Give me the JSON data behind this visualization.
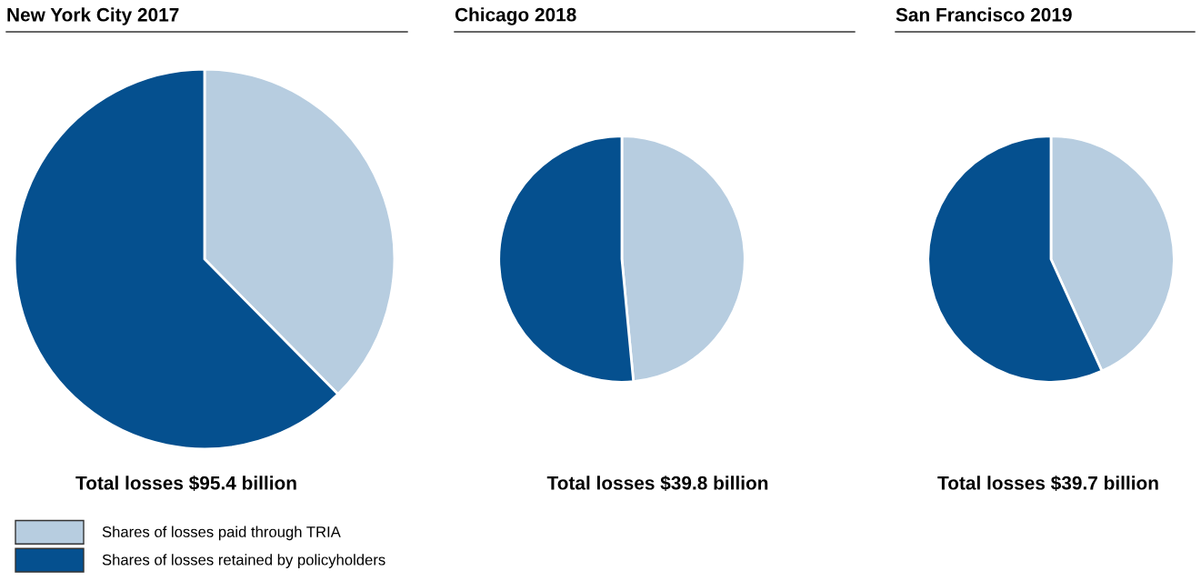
{
  "chart_data": [
    {
      "type": "pie",
      "title": "New York City 2017",
      "categories": [
        "Shares of losses paid through TRIA",
        "Shares of losses retained by policyholders"
      ],
      "values": [
        37.6,
        62.4
      ],
      "colors": [
        "#b7cde0",
        "#05508f"
      ],
      "annotations": [
        "Total losses $95.4 billion"
      ],
      "legend": "bottom left"
    },
    {
      "type": "pie",
      "title": "Chicago 2018",
      "categories": [
        null,
        null
      ],
      "values": [
        48.5,
        51.5
      ],
      "colors": [
        "#b7cde0",
        "#05508f"
      ],
      "annotations": [
        "Total losses $39.8 billion"
      ]
    },
    {
      "type": "pie",
      "title": "San Francisco 2019",
      "categories": [
        null,
        null
      ],
      "values": [
        43.2,
        56.8
      ],
      "colors": [
        "#b7cde0",
        "#05508f"
      ],
      "annotations": [
        "Total losses $39.7 billion"
      ]
    }
  ]
}
